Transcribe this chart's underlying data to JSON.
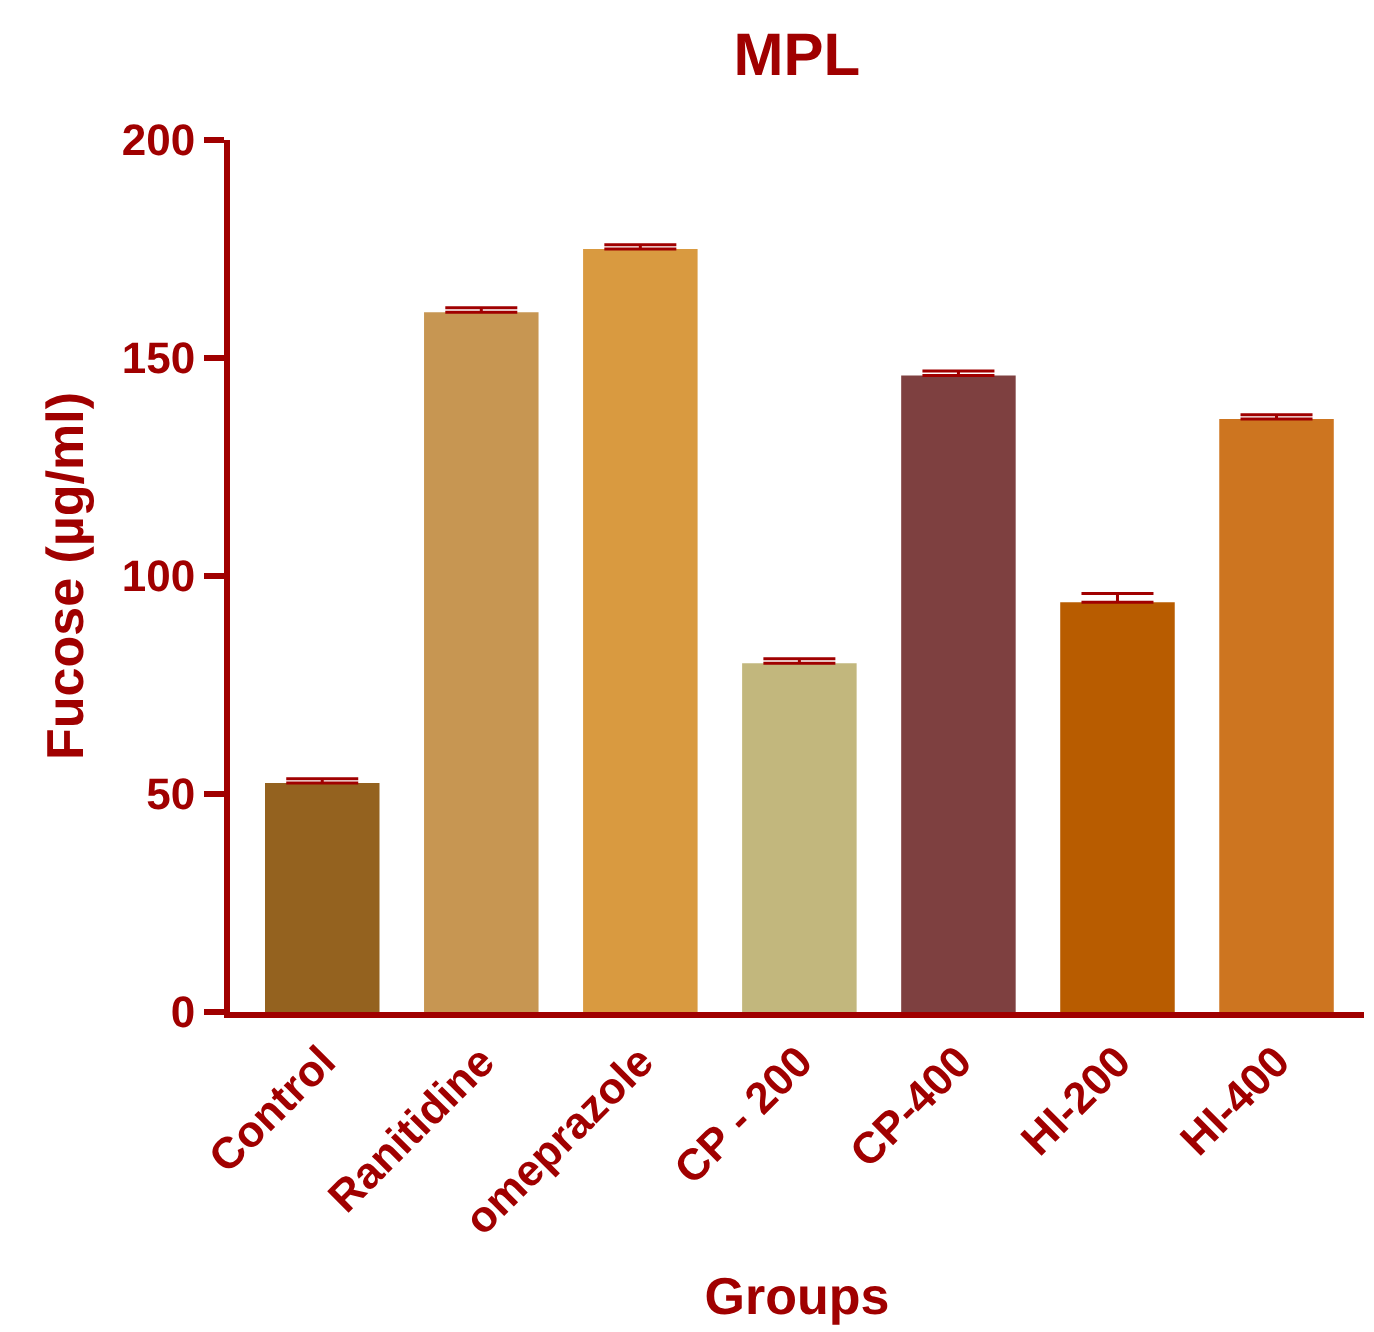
{
  "chart_data": {
    "type": "bar",
    "title": "MPL",
    "xlabel": "Groups",
    "ylabel": "Fucose (µg/ml)",
    "categories": [
      "Control",
      "Ranitidine",
      "omeprazole",
      "CP - 200",
      "CP-400",
      "HI-200",
      "HI-400"
    ],
    "values": [
      52.5,
      160.5,
      175,
      80,
      146,
      94,
      136
    ],
    "colors": [
      "#94621f",
      "#c79652",
      "#d99a40",
      "#c2b77d",
      "#7e4040",
      "#b85c00",
      "#cd7520"
    ],
    "errors": [
      [
        52.5,
        53.5
      ],
      [
        160.5,
        161.5
      ],
      [
        175,
        176
      ],
      [
        80,
        81
      ],
      [
        146,
        147
      ],
      [
        94,
        96
      ],
      [
        136,
        137
      ]
    ],
    "ylim": [
      0,
      200
    ],
    "yticks": [
      0,
      50,
      100,
      150,
      200
    ],
    "grid": false
  }
}
